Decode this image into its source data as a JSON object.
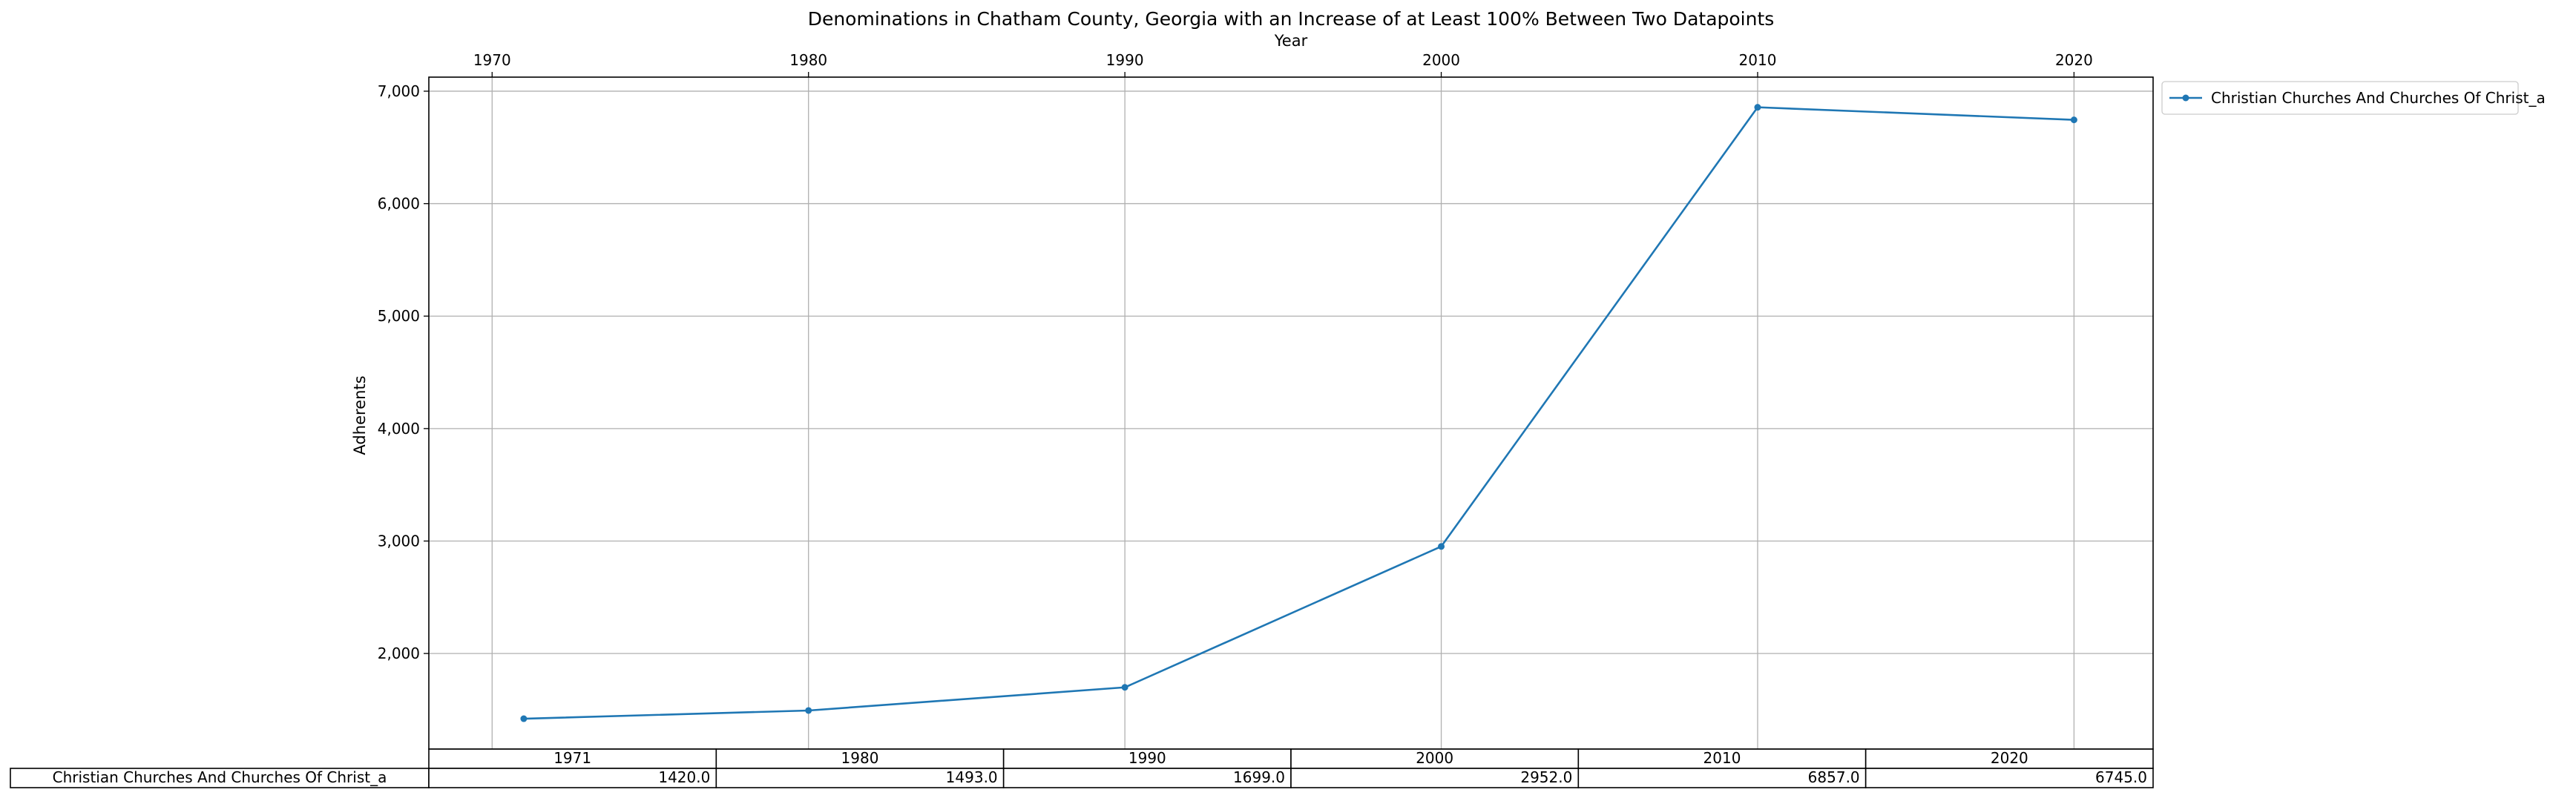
{
  "chart_data": {
    "type": "line",
    "title": "Denominations in Chatham County, Georgia with an Increase of at Least 100% Between Two Datapoints",
    "xlabel": "Year",
    "ylabel": "Adherents",
    "x_ticks": [
      1970,
      1980,
      1990,
      2000,
      2010,
      2020
    ],
    "y_ticks": [
      2000,
      3000,
      4000,
      5000,
      6000,
      7000
    ],
    "y_tick_labels": [
      "2,000",
      "3,000",
      "4,000",
      "5,000",
      "6,000",
      "7,000"
    ],
    "xlim": [
      1968,
      2022.5
    ],
    "ylim": [
      1150,
      7125
    ],
    "grid": true,
    "legend_placement": "outside top-right",
    "x": [
      1971,
      1980,
      1990,
      2000,
      2010,
      2020
    ],
    "series": [
      {
        "name": "Christian Churches And Churches Of Christ_a",
        "color": "#1f77b4",
        "marker": "dot",
        "values": [
          1420,
          1493,
          1699,
          2952,
          6857,
          6745
        ]
      }
    ],
    "table": {
      "columns": [
        "1971",
        "1980",
        "1990",
        "2000",
        "2010",
        "2020"
      ],
      "rows": [
        {
          "label": "Christian Churches And Churches Of Christ_a",
          "cells": [
            "1420.0",
            "1493.0",
            "1699.0",
            "2952.0",
            "6857.0",
            "6745.0"
          ]
        }
      ]
    }
  }
}
